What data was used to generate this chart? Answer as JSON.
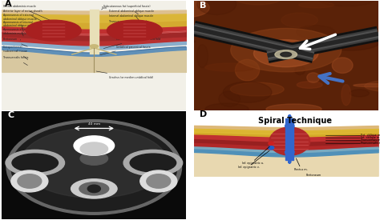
{
  "panel_labels": [
    "A",
    "B",
    "C",
    "D"
  ],
  "spiral_technique_title": "Spiral Technique",
  "colors": {
    "background": "#ffffff",
    "panel_A_bg": "#f8f8f0",
    "skin": "#e8c8a0",
    "fat": "#d4b840",
    "fat2": "#c8aa30",
    "muscle_bright": "#c03030",
    "muscle_mid": "#a02828",
    "muscle_dark": "#882020",
    "fascia_blue": "#7ab0cc",
    "fascia_gray": "#a0b8c8",
    "linea_alba": "#e8e0c0",
    "peritoneum": "#8ab8d8",
    "extra_peritoneal": "#d8c8a0",
    "label_color": "#111111",
    "arrow_blue": "#3366cc",
    "arrow_white": "#ffffff"
  }
}
